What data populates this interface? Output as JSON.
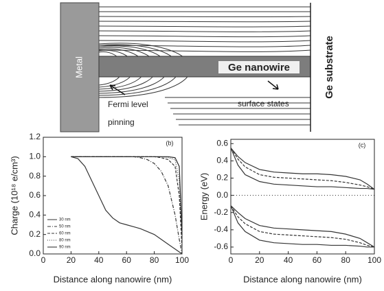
{
  "diagram": {
    "metal": "Metal",
    "nanowire": "Ge nanowire",
    "fermi": "Fermi level",
    "pinning": "pinning",
    "surface": "surface states",
    "substrate": "Ge substrate"
  },
  "chart_data": [
    {
      "type": "line",
      "panel_label": "(b)",
      "y_label": "Charge (10¹⁸ e/cm³)",
      "x_label": "Distance along nanowire  (nm)",
      "xlim": [
        0,
        100
      ],
      "ylim": [
        0,
        1.2
      ],
      "xticks": [
        0,
        20,
        40,
        60,
        80,
        100
      ],
      "yticks": [
        {
          "value": 0,
          "label": "0.0"
        },
        0.2,
        0.4,
        0.6,
        0.8,
        {
          "value": 1,
          "label": "1.0"
        },
        1.2
      ],
      "legend": "lower left",
      "x": [
        20,
        25,
        30,
        35,
        40,
        45,
        50,
        55,
        60,
        65,
        70,
        75,
        80,
        85,
        90,
        95,
        98,
        100
      ],
      "series": [
        {
          "name": "30 nm",
          "color": "#333",
          "dash": "none",
          "values": [
            1.0,
            0.98,
            0.9,
            0.75,
            0.6,
            0.45,
            0.37,
            0.32,
            0.3,
            0.28,
            0.26,
            0.23,
            0.2,
            0.15,
            0.1,
            0.05,
            0.02,
            0.0
          ]
        },
        {
          "name": "50 nm",
          "color": "#333",
          "dash": "5 2 1 2",
          "values": [
            1.0,
            1.0,
            1.0,
            1.0,
            1.0,
            1.0,
            1.0,
            1.0,
            1.0,
            1.0,
            0.99,
            0.97,
            0.93,
            0.85,
            0.7,
            0.4,
            0.15,
            0.0
          ]
        },
        {
          "name": "60 nm",
          "color": "#333",
          "dash": "4 2",
          "values": [
            1.0,
            1.0,
            1.0,
            1.0,
            1.0,
            1.0,
            1.0,
            1.0,
            1.0,
            1.0,
            1.0,
            1.0,
            1.0,
            0.99,
            0.97,
            0.9,
            0.6,
            0.05
          ]
        },
        {
          "name": "80 nm",
          "color": "#333",
          "dash": "1 2",
          "values": [
            1.0,
            1.0,
            1.0,
            1.0,
            1.0,
            1.0,
            1.0,
            1.0,
            1.0,
            1.0,
            1.0,
            1.0,
            1.0,
            1.0,
            0.99,
            0.97,
            0.75,
            0.1
          ]
        },
        {
          "name": "90 nm",
          "color": "#222",
          "dash": "none",
          "values": [
            1.0,
            1.0,
            1.0,
            1.0,
            1.0,
            1.0,
            1.0,
            1.0,
            1.0,
            1.0,
            1.0,
            1.0,
            1.0,
            1.0,
            1.0,
            0.99,
            0.9,
            0.2
          ]
        }
      ]
    },
    {
      "type": "line",
      "panel_label": "(c)",
      "y_label": "Energy  (eV)",
      "x_label": "Distance along nanowire  (nm)",
      "xlim": [
        0,
        100
      ],
      "ylim": [
        -0.68,
        0.65
      ],
      "xticks": [
        0,
        20,
        40,
        60,
        80,
        100
      ],
      "yticks": [
        -0.6,
        -0.4,
        -0.2,
        {
          "value": 0,
          "label": "0.0"
        },
        0.2,
        0.4,
        0.6
      ],
      "zero_line": true,
      "x": [
        0,
        5,
        10,
        20,
        30,
        40,
        50,
        60,
        70,
        80,
        90,
        95,
        100
      ],
      "series": [
        {
          "color": "#333",
          "dash": "none",
          "values": [
            0.55,
            0.45,
            0.38,
            0.3,
            0.27,
            0.26,
            0.25,
            0.25,
            0.24,
            0.22,
            0.18,
            0.13,
            0.07
          ]
        },
        {
          "color": "#333",
          "dash": "4 2",
          "values": [
            0.55,
            0.42,
            0.33,
            0.24,
            0.21,
            0.2,
            0.19,
            0.18,
            0.17,
            0.15,
            0.12,
            0.1,
            0.07
          ]
        },
        {
          "color": "#333",
          "dash": "none",
          "values": [
            0.55,
            0.35,
            0.24,
            0.16,
            0.13,
            0.12,
            0.11,
            0.1,
            0.1,
            0.09,
            0.08,
            0.08,
            0.07
          ]
        },
        {
          "color": "#333",
          "dash": "none",
          "values": [
            -0.12,
            -0.2,
            -0.27,
            -0.35,
            -0.38,
            -0.39,
            -0.4,
            -0.41,
            -0.42,
            -0.45,
            -0.5,
            -0.55,
            -0.6
          ]
        },
        {
          "color": "#333",
          "dash": "4 2",
          "values": [
            -0.12,
            -0.25,
            -0.33,
            -0.42,
            -0.45,
            -0.46,
            -0.47,
            -0.48,
            -0.49,
            -0.51,
            -0.55,
            -0.58,
            -0.6
          ]
        },
        {
          "color": "#333",
          "dash": "none",
          "values": [
            -0.12,
            -0.32,
            -0.42,
            -0.52,
            -0.55,
            -0.56,
            -0.57,
            -0.57,
            -0.58,
            -0.58,
            -0.59,
            -0.6,
            -0.6
          ]
        }
      ]
    }
  ]
}
